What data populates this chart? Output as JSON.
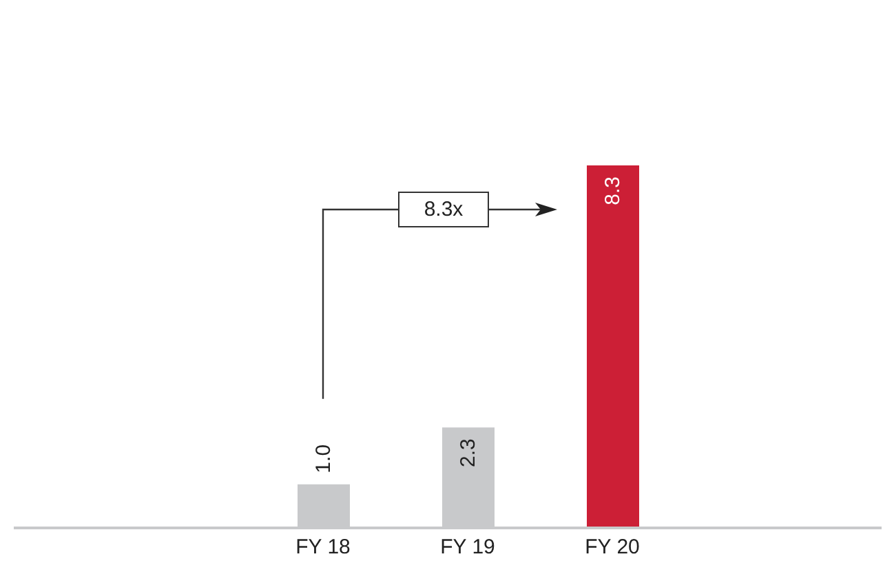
{
  "chart_data": {
    "type": "bar",
    "categories": [
      "FY 18",
      "FY 19",
      "FY 20"
    ],
    "values": [
      1.0,
      2.3,
      8.3
    ],
    "value_labels": [
      "1.0",
      "2.3",
      "8.3"
    ],
    "colors": [
      "#c8c9cb",
      "#c8c9cb",
      "#cc1f36"
    ],
    "tick_labels": "x",
    "annotations": [
      "8.3x"
    ]
  }
}
